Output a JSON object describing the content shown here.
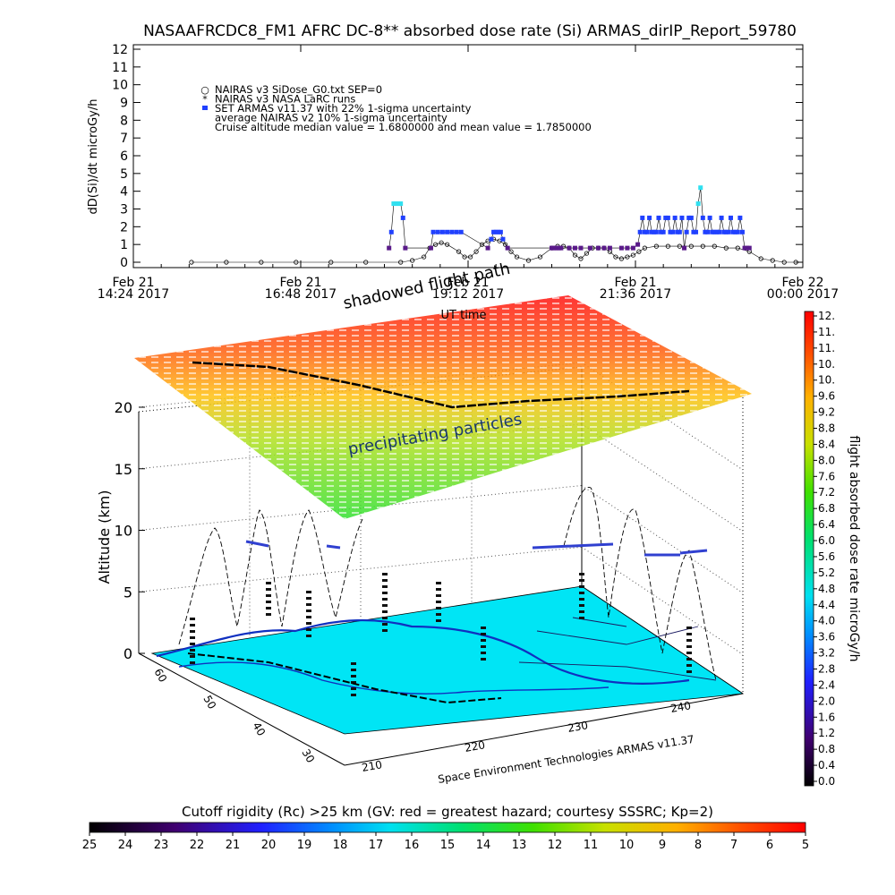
{
  "title": "NASAAFRCDC8_FM1 AFRC DC-8** absorbed dose rate (Si) ARMAS_dirIP_Report_59780",
  "colors": {
    "nairas_v3": "#000000",
    "set_armas": "#2040ff",
    "set_armas_high": "#30e0f0",
    "set_armas_low": "#5a1a8a",
    "ground": "#00e5f5",
    "coast": "#1030c0"
  },
  "chart_data": [
    {
      "type": "scatter",
      "ylabel": "dD(Si)/dt microGy/h",
      "ylim": [
        0,
        12
      ],
      "y_ticks": [
        "0",
        "1",
        "2",
        "3",
        "4",
        "5",
        "6",
        "7",
        "8",
        "9",
        "10",
        "11",
        "12"
      ],
      "x_ticks": [
        {
          "t": 0,
          "l1": "Feb 21",
          "l2": "14:24 2017"
        },
        {
          "t": 144,
          "l1": "Feb 21",
          "l2": "16:48 2017"
        },
        {
          "t": 288,
          "l1": "Feb 21",
          "l2": "19:12 2017"
        },
        {
          "t": 432,
          "l1": "Feb 21",
          "l2": "21:36 2017"
        },
        {
          "t": 576,
          "l1": "Feb 22",
          "l2": "00:00 2017"
        }
      ],
      "xlim_minutes": [
        0,
        576
      ],
      "xlabel": "UT time",
      "legend": [
        {
          "symbol": "○",
          "text": "NAIRAS v3 SiDose_G0.txt SEP=0"
        },
        {
          "symbol": "*",
          "text": "NAIRAS v3 NASA LaRC runs"
        },
        {
          "symbol": "■",
          "text": "SET ARMAS v11.37 with 22% 1-sigma uncertainty"
        },
        {
          "symbol": "",
          "text": "average NAIRAS v2 10% 1-sigma uncertainty"
        },
        {
          "symbol": "",
          "text": "Cruise altitude median value =    1.6800000 and mean value =    1.7850000"
        }
      ],
      "series": [
        {
          "name": "NAIRAS v3 SiDose_G0.txt SEP=0",
          "marker": "circle",
          "x": [
            50,
            80,
            110,
            140,
            170,
            200,
            230,
            240,
            250,
            255,
            260,
            265,
            270,
            280,
            285,
            290,
            295,
            300,
            305,
            310,
            315,
            320,
            325,
            330,
            340,
            350,
            360,
            365,
            370,
            375,
            380,
            385,
            390,
            395,
            400,
            405,
            410,
            415,
            420,
            425,
            430,
            435,
            440,
            450,
            460,
            470,
            480,
            490,
            500,
            510,
            520,
            530,
            540,
            550,
            560,
            570
          ],
          "y": [
            0,
            0,
            0,
            0,
            0,
            0,
            0,
            0.1,
            0.3,
            0.8,
            1.0,
            1.1,
            1.0,
            0.6,
            0.3,
            0.3,
            0.6,
            1.0,
            1.2,
            1.3,
            1.2,
            1.0,
            0.6,
            0.3,
            0.1,
            0.3,
            0.8,
            0.9,
            0.9,
            0.8,
            0.4,
            0.2,
            0.5,
            0.8,
            0.8,
            0.8,
            0.6,
            0.3,
            0.2,
            0.3,
            0.4,
            0.6,
            0.8,
            0.9,
            0.9,
            0.9,
            0.9,
            0.9,
            0.9,
            0.8,
            0.8,
            0.6,
            0.2,
            0.1,
            0,
            0
          ]
        },
        {
          "name": "SET ARMAS v11.37 with 22% 1-sigma uncertainty",
          "marker": "square",
          "x": [
            220,
            222,
            224,
            226,
            228,
            230,
            232,
            234,
            256,
            258,
            262,
            266,
            270,
            274,
            278,
            282,
            305,
            308,
            310,
            312,
            314,
            316,
            318,
            322,
            360,
            362,
            364,
            366,
            368,
            375,
            380,
            385,
            393,
            400,
            405,
            410,
            420,
            425,
            430,
            434,
            436,
            438,
            440,
            442,
            444,
            446,
            448,
            450,
            452,
            454,
            456,
            458,
            460,
            462,
            464,
            466,
            468,
            470,
            472,
            474,
            476,
            478,
            480,
            482,
            484,
            486,
            488,
            490,
            492,
            494,
            496,
            498,
            500,
            502,
            504,
            506,
            508,
            510,
            512,
            514,
            516,
            518,
            520,
            522,
            524,
            526,
            528,
            530
          ],
          "y": [
            0.8,
            1.7,
            3.3,
            3.3,
            3.3,
            3.3,
            2.5,
            0.8,
            0.8,
            1.7,
            1.7,
            1.7,
            1.7,
            1.7,
            1.7,
            1.7,
            0.8,
            1.3,
            1.7,
            1.7,
            1.7,
            1.7,
            1.3,
            0.8,
            0.8,
            0.8,
            0.8,
            0.8,
            0.8,
            0.8,
            0.8,
            0.8,
            0.8,
            0.8,
            0.8,
            0.8,
            0.8,
            0.8,
            0.8,
            1.0,
            1.7,
            2.5,
            1.7,
            1.7,
            2.5,
            1.7,
            1.7,
            1.7,
            2.5,
            1.7,
            1.7,
            2.5,
            2.5,
            1.7,
            1.7,
            2.5,
            1.7,
            1.7,
            2.5,
            0.8,
            1.7,
            2.5,
            2.5,
            1.7,
            1.7,
            3.3,
            4.2,
            2.5,
            1.7,
            1.7,
            2.5,
            1.7,
            1.7,
            1.7,
            1.7,
            2.5,
            1.7,
            1.7,
            1.7,
            2.5,
            1.7,
            1.7,
            1.7,
            2.5,
            1.7,
            0.8,
            0.8,
            0.8
          ]
        }
      ]
    },
    {
      "type": "scatter",
      "subtype": "3d-flight-path",
      "ylabel": "Altitude (km)",
      "zlim": [
        0,
        20
      ],
      "z_ticks": [
        "0",
        "5",
        "10",
        "15",
        "20"
      ],
      "lat_ticks": [
        "30",
        "40",
        "50",
        "60"
      ],
      "lon_ticks": [
        "210",
        "220",
        "230",
        "240"
      ],
      "annotations": [
        "shadowed flight path",
        "precipitating particles"
      ],
      "footer": "Space Environment Technologies ARMAS v11.37",
      "colorbar": {
        "label": "flight absorbed dose rate microGy/h",
        "ticks": [
          "0.0",
          "0.4",
          "0.8",
          "1.2",
          "1.6",
          "2.0",
          "2.4",
          "2.8",
          "3.2",
          "3.6",
          "4.0",
          "4.4",
          "4.8",
          "5.2",
          "5.6",
          "6.0",
          "6.4",
          "6.8",
          "7.2",
          "7.6",
          "8.0",
          "8.4",
          "8.8",
          "9.2",
          "9.6",
          "10.",
          "10.",
          "11.",
          "11.",
          "12."
        ]
      }
    },
    {
      "type": "heatmap",
      "subtype": "colorbar",
      "title": "Cutoff rigidity (Rc) >25 km (GV: red = greatest hazard; courtesy SSSRC; Kp=2)",
      "ticks": [
        "25",
        "24",
        "23",
        "22",
        "21",
        "20",
        "19",
        "18",
        "17",
        "16",
        "15",
        "14",
        "13",
        "12",
        "11",
        "10",
        "9",
        "8",
        "7",
        "6",
        "5"
      ]
    }
  ]
}
